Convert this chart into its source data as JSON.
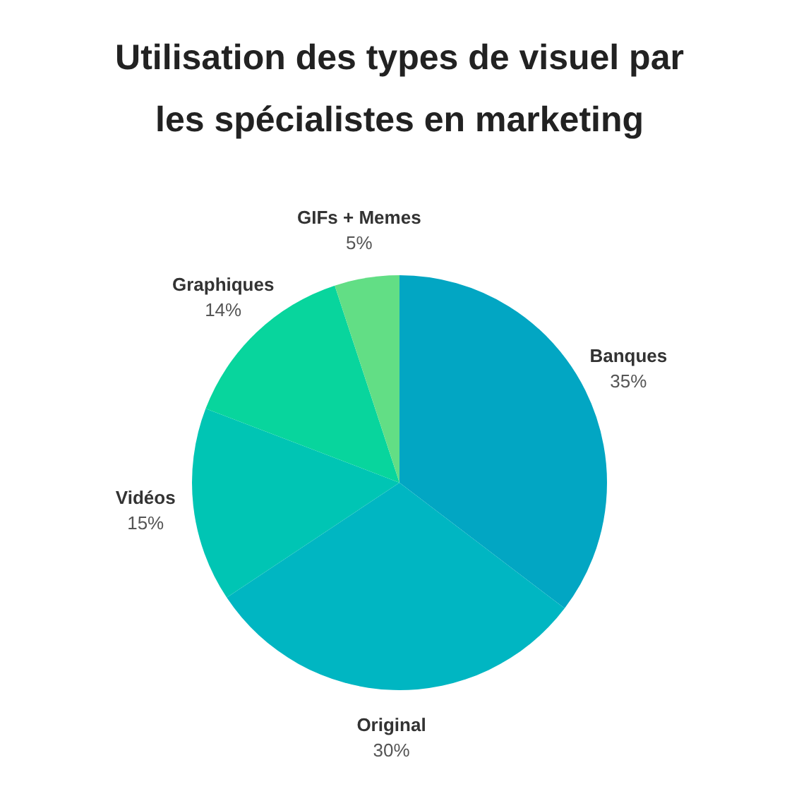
{
  "chart_data": {
    "type": "pie",
    "title": "Utilisation des types de visuel par\nles spécialistes en marketing",
    "categories": [
      "Banques",
      "Original",
      "Vidéos",
      "Graphiques",
      "GIFs + Memes"
    ],
    "values": [
      35,
      30,
      15,
      14,
      5
    ],
    "value_labels": [
      "35%",
      "30%",
      "15%",
      "14%",
      "5%"
    ],
    "colors": [
      "#02a6c3",
      "#00b6c2",
      "#00c5b4",
      "#08d59d",
      "#62de85"
    ]
  }
}
